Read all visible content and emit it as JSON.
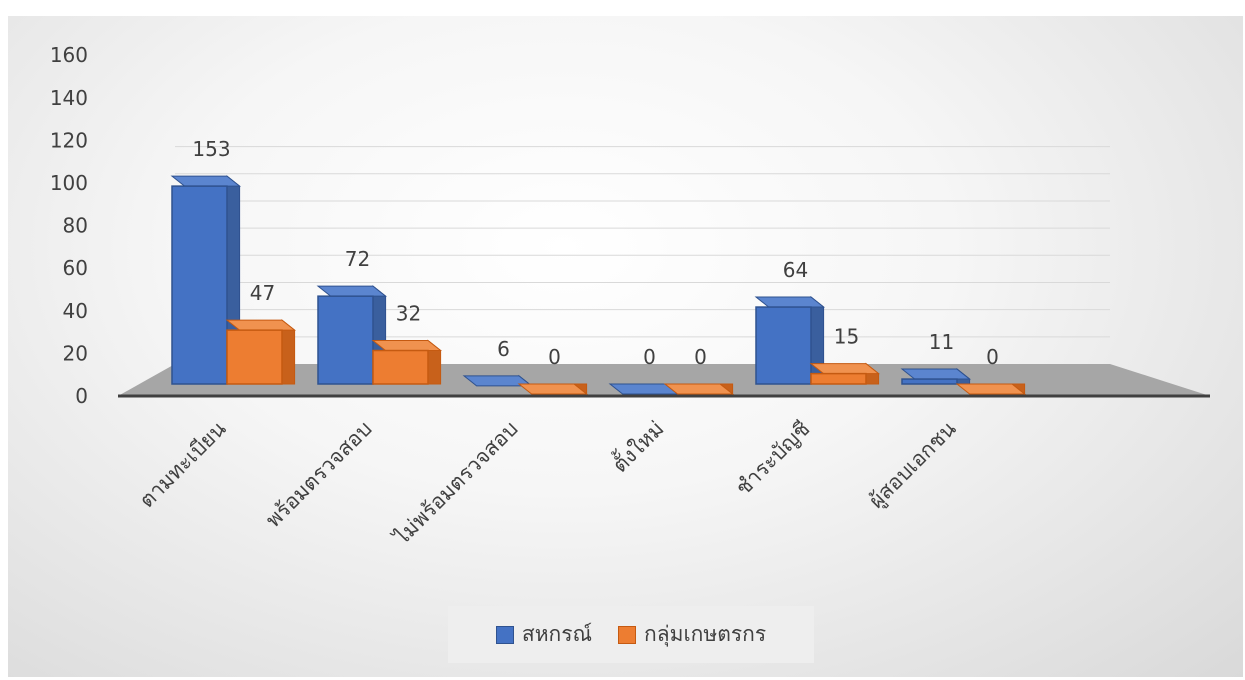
{
  "chart_data": {
    "type": "bar",
    "categories": [
      "ตามทะเบียน",
      "พร้อมตรวจสอบ",
      "ไม่พร้อมตรวจสอบ",
      "ตั้งใหม่",
      "ชำระบัญชี",
      "ผู้สอบเอกชน"
    ],
    "series": [
      {
        "name": "สหกรณ์",
        "values": [
          153,
          72,
          6,
          0,
          64,
          11
        ],
        "color": "#4472c4"
      },
      {
        "name": "กลุ่มเกษตรกร",
        "values": [
          47,
          32,
          0,
          0,
          15,
          0
        ],
        "color": "#ed7d31"
      }
    ],
    "yticks": [
      0,
      20,
      40,
      60,
      80,
      100,
      120,
      140,
      160
    ],
    "ylim": [
      0,
      160
    ],
    "grid": true,
    "style": "3d-clustered-column",
    "legend_position": "bottom"
  }
}
